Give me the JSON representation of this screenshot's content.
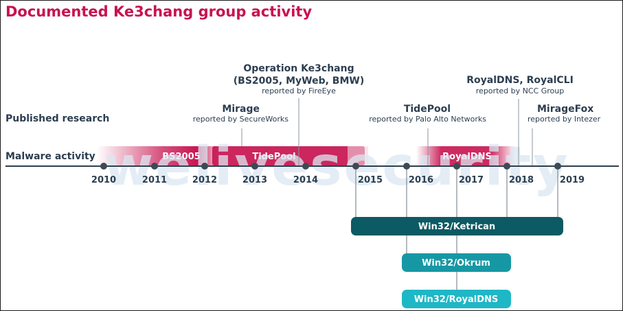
{
  "title": "Documented Ke3chang group activity",
  "watermark": "welivesecurity",
  "rows": {
    "published": "Published research",
    "malware": "Malware activity"
  },
  "years": [
    "2010",
    "2011",
    "2012",
    "2013",
    "2014",
    "2015",
    "2016",
    "2017",
    "2018",
    "2019"
  ],
  "research": [
    {
      "title": "Operation Ke3chang",
      "title2": "(BS2005, MyWeb, BMW)",
      "sub": "reported by FireEye"
    },
    {
      "title": "Mirage",
      "sub": "reported by SecureWorks"
    },
    {
      "title": "TidePool",
      "sub": "reported by Palo Alto Networks"
    },
    {
      "title": "RoyalDNS, RoyalCLI",
      "sub": "reported by NCC Group"
    },
    {
      "title": "MirageFox",
      "sub": "reported by Intezer"
    }
  ],
  "activity_bars": [
    {
      "label": "BS2005"
    },
    {
      "label": "TidePool"
    },
    {
      "label": "RoyalDNS"
    }
  ],
  "families": [
    {
      "label": "Win32/Ketrican",
      "color": "#0c5a63"
    },
    {
      "label": "Win32/Okrum",
      "color": "#1698a4"
    },
    {
      "label": "Win32/RoyalDNS",
      "color": "#1eb7c6"
    }
  ],
  "colors": {
    "accent": "#c7134f",
    "text": "#2c3e50",
    "node": "#3d4a55"
  }
}
